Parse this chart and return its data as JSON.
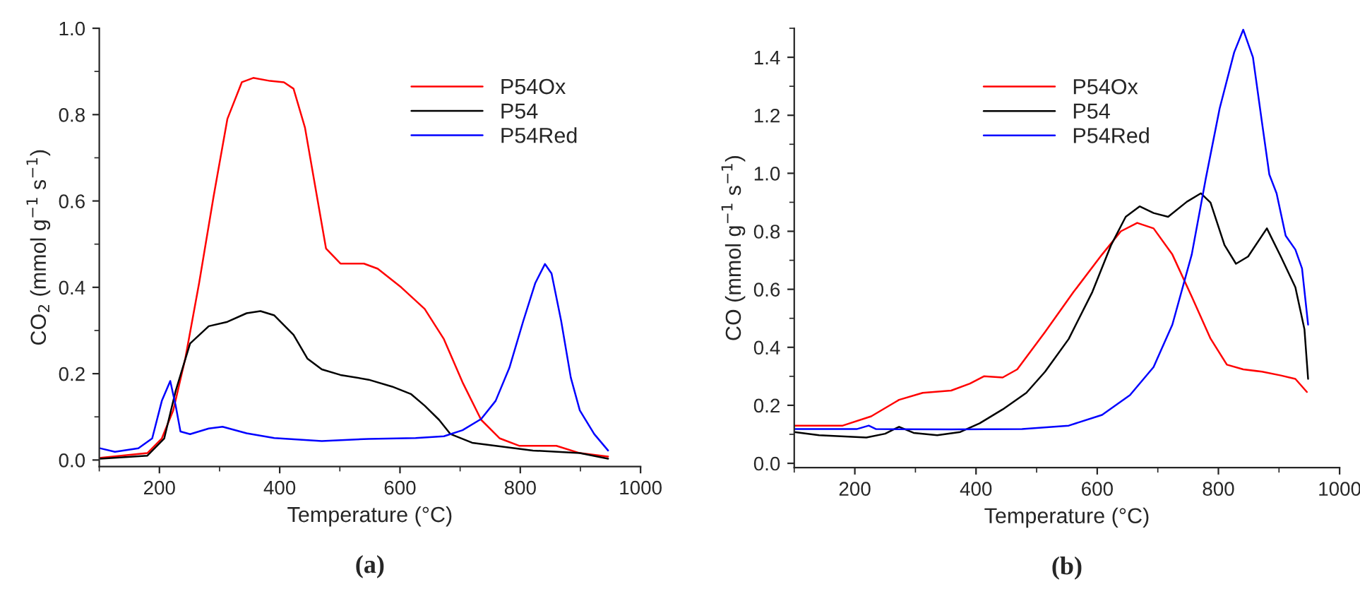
{
  "chart_data": [
    {
      "type": "line",
      "xlabel": "Temperature (°C)",
      "ylabel": "CO$_{2}$ (mmol g$^{−1}$ s$^{−1}$)",
      "annotations": [
        "(a)"
      ],
      "legend": "top right",
      "grid": false,
      "xlim": [
        100,
        1000
      ],
      "xticks": [
        200,
        400,
        600,
        800,
        1000
      ],
      "ylim": [
        -0.015,
        1.0
      ],
      "yticks": [
        {
          "value": 0,
          "label": "0.0"
        },
        {
          "value": 0.2,
          "label": "0.2"
        },
        {
          "value": 0.4,
          "label": "0.4"
        },
        {
          "value": 0.6,
          "label": "0.6"
        },
        {
          "value": 0.8,
          "label": "0.8"
        },
        {
          "value": 1.0,
          "label": "1.0"
        }
      ],
      "series": [
        {
          "name": "P54Ox",
          "color": "#ff0000",
          "x": [
            102,
            180,
            204,
            223,
            243,
            266,
            290,
            313,
            337,
            356,
            384,
            407,
            423,
            442,
            462,
            477,
            501,
            540,
            563,
            602,
            641,
            673,
            704,
            735,
            766,
            798,
            860,
            899,
            946
          ],
          "values": [
            0.005,
            0.016,
            0.05,
            0.115,
            0.235,
            0.41,
            0.61,
            0.79,
            0.875,
            0.885,
            0.878,
            0.875,
            0.86,
            0.77,
            0.61,
            0.49,
            0.455,
            0.455,
            0.443,
            0.4,
            0.35,
            0.28,
            0.18,
            0.093,
            0.05,
            0.033,
            0.033,
            0.016,
            0.008
          ]
        },
        {
          "name": "P54",
          "color": "#000000",
          "x": [
            102,
            180,
            208,
            227,
            251,
            282,
            313,
            345,
            368,
            391,
            423,
            446,
            470,
            501,
            548,
            587,
            618,
            641,
            665,
            684,
            720,
            759,
            821,
            899,
            946
          ],
          "values": [
            0.003,
            0.01,
            0.05,
            0.16,
            0.27,
            0.31,
            0.32,
            0.34,
            0.345,
            0.335,
            0.29,
            0.235,
            0.21,
            0.197,
            0.186,
            0.17,
            0.153,
            0.126,
            0.093,
            0.06,
            0.04,
            0.033,
            0.022,
            0.016,
            0.003
          ]
        },
        {
          "name": "P54Red",
          "color": "#0000ff",
          "x": [
            102,
            126,
            165,
            188,
            204,
            218,
            227,
            235,
            251,
            282,
            305,
            345,
            391,
            470,
            548,
            626,
            673,
            704,
            735,
            759,
            782,
            805,
            825,
            841,
            852,
            868,
            884,
            899,
            923,
            946
          ],
          "values": [
            0.027,
            0.019,
            0.027,
            0.05,
            0.137,
            0.183,
            0.126,
            0.066,
            0.06,
            0.073,
            0.077,
            0.062,
            0.051,
            0.044,
            0.049,
            0.051,
            0.055,
            0.069,
            0.095,
            0.137,
            0.214,
            0.322,
            0.41,
            0.454,
            0.432,
            0.322,
            0.191,
            0.115,
            0.06,
            0.022
          ]
        }
      ]
    },
    {
      "type": "line",
      "xlabel": "Temperature (°C)",
      "ylabel": "CO (mmol g$^{−1}$ s$^{−1}$)",
      "annotations": [
        "(b)"
      ],
      "legend": "top",
      "grid": false,
      "xlim": [
        100,
        1000
      ],
      "xticks": [
        200,
        400,
        600,
        800,
        1000
      ],
      "ylim": [
        -0.015,
        1.5
      ],
      "yticks": [
        {
          "value": 0,
          "label": "0.0"
        },
        {
          "value": 0.2,
          "label": "0.2"
        },
        {
          "value": 0.4,
          "label": "0.4"
        },
        {
          "value": 0.6,
          "label": "0.6"
        },
        {
          "value": 0.8,
          "label": "0.8"
        },
        {
          "value": 1.0,
          "label": "1.0"
        },
        {
          "value": 1.2,
          "label": "1.2"
        },
        {
          "value": 1.4,
          "label": "1.4"
        }
      ],
      "series": [
        {
          "name": "P54Ox",
          "color": "#ff0000",
          "x": [
            100,
            180,
            227,
            273,
            312,
            359,
            390,
            413,
            444,
            468,
            514,
            561,
            608,
            639,
            666,
            693,
            724,
            756,
            787,
            814,
            841,
            872,
            903,
            927,
            946
          ],
          "values": [
            0.13,
            0.13,
            0.162,
            0.219,
            0.243,
            0.251,
            0.275,
            0.3,
            0.296,
            0.324,
            0.453,
            0.591,
            0.72,
            0.8,
            0.829,
            0.81,
            0.72,
            0.575,
            0.43,
            0.34,
            0.324,
            0.316,
            0.303,
            0.291,
            0.246
          ]
        },
        {
          "name": "P54",
          "color": "#000000",
          "x": [
            100,
            141,
            219,
            250,
            273,
            297,
            336,
            374,
            406,
            444,
            483,
            514,
            553,
            592,
            623,
            647,
            670,
            693,
            717,
            748,
            771,
            787,
            810,
            829,
            849,
            880,
            903,
            927,
            942,
            948
          ],
          "values": [
            0.108,
            0.097,
            0.089,
            0.102,
            0.126,
            0.105,
            0.097,
            0.108,
            0.138,
            0.186,
            0.243,
            0.316,
            0.429,
            0.591,
            0.753,
            0.85,
            0.886,
            0.863,
            0.85,
            0.902,
            0.931,
            0.899,
            0.753,
            0.688,
            0.713,
            0.81,
            0.713,
            0.607,
            0.462,
            0.291
          ]
        },
        {
          "name": "P54Red",
          "color": "#0000ff",
          "x": [
            100,
            203,
            223,
            235,
            359,
            476,
            553,
            608,
            654,
            693,
            724,
            756,
            779,
            802,
            826,
            841,
            857,
            872,
            884,
            896,
            911,
            927,
            938,
            948
          ],
          "values": [
            0.118,
            0.118,
            0.13,
            0.118,
            0.117,
            0.118,
            0.13,
            0.167,
            0.235,
            0.332,
            0.478,
            0.72,
            0.98,
            1.223,
            1.417,
            1.495,
            1.4,
            1.174,
            0.996,
            0.931,
            0.785,
            0.737,
            0.672,
            0.478
          ]
        }
      ]
    }
  ]
}
